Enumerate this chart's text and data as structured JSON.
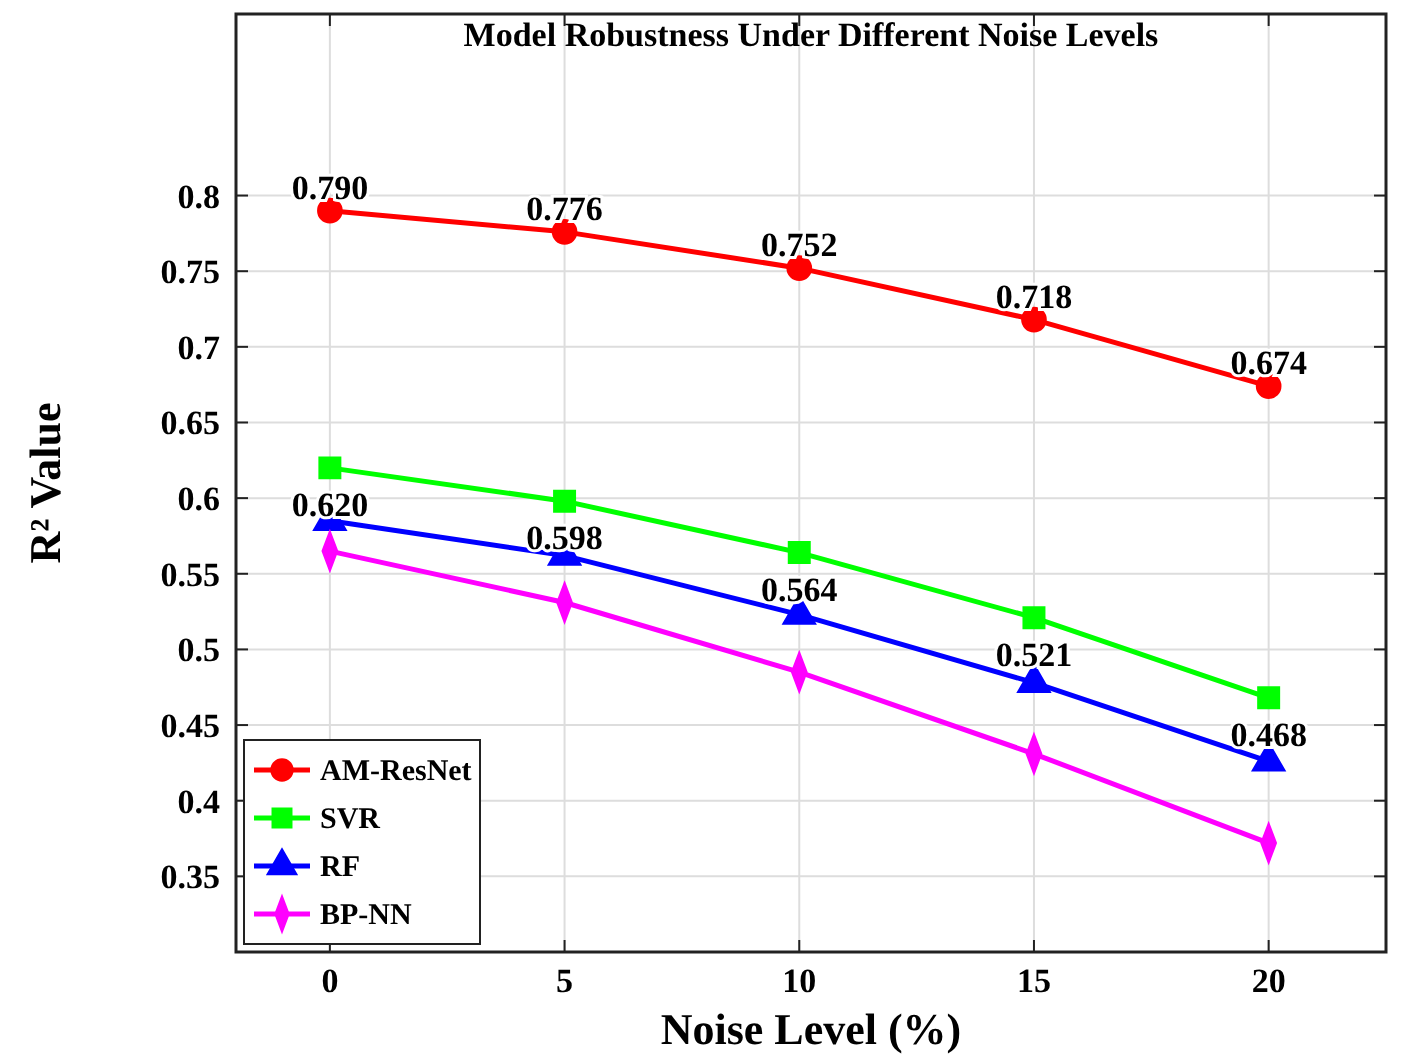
{
  "chart_data": {
    "type": "line",
    "title": "Model Robustness Under Different Noise Levels",
    "xlabel": "Noise Level (%)",
    "ylabel": "R² Value",
    "x": [
      0,
      5,
      10,
      15,
      20
    ],
    "xlim": [
      -2,
      22.5
    ],
    "xticks": [
      0,
      5,
      10,
      15,
      20
    ],
    "ylim": [
      0.3,
      0.92
    ],
    "yticks": [
      0.35,
      0.4,
      0.45,
      0.5,
      0.55,
      0.6,
      0.65,
      0.7,
      0.75,
      0.8
    ],
    "grid": true,
    "legend": "bottom left",
    "line_style": "solid",
    "series": [
      {
        "name": "AM-ResNet",
        "color": "#ff0000",
        "marker": "circle",
        "values": [
          0.79,
          0.776,
          0.752,
          0.718,
          0.674
        ],
        "value_labels": [
          "0.790",
          "0.776",
          "0.752",
          "0.718",
          "0.674"
        ]
      },
      {
        "name": "SVR",
        "color": "#00ff00",
        "marker": "square",
        "values": [
          0.62,
          0.598,
          0.564,
          0.521,
          0.468
        ],
        "value_labels": [
          "0.620",
          "0.598",
          "0.564",
          "0.521",
          "0.468"
        ]
      },
      {
        "name": "RF",
        "color": "#0000ff",
        "marker": "triangle",
        "values": [
          0.585,
          0.562,
          0.523,
          0.478,
          0.426
        ]
      },
      {
        "name": "BP-NN",
        "color": "#ff00ff",
        "marker": "diamond",
        "values": [
          0.565,
          0.531,
          0.485,
          0.431,
          0.372
        ]
      }
    ]
  }
}
